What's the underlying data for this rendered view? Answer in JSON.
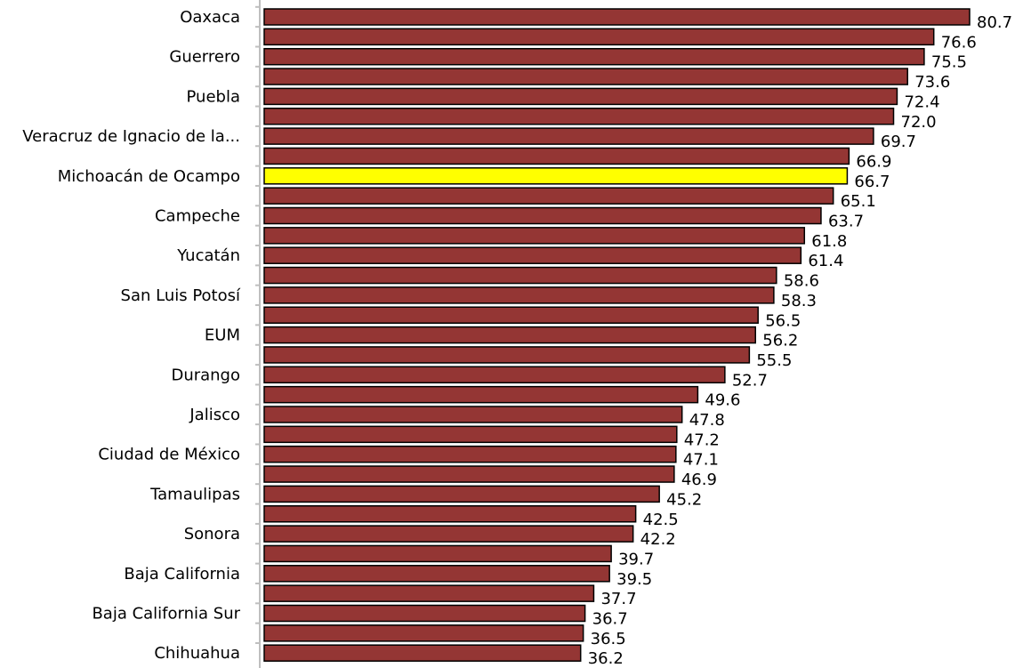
{
  "chart_data": {
    "type": "bar",
    "orientation": "horizontal",
    "categories": [
      "Oaxaca",
      "",
      "Guerrero",
      "",
      "Puebla",
      "",
      "Veracruz de Ignacio de la...",
      "",
      "Michoacán de Ocampo",
      "",
      "Campeche",
      "",
      "Yucatán",
      "",
      "San Luis Potosí",
      "",
      "EUM",
      "",
      "Durango",
      "",
      "Jalisco",
      "",
      "Ciudad de México",
      "",
      "Tamaulipas",
      "",
      "Sonora",
      "",
      "Baja California",
      "",
      "Baja California Sur",
      "",
      "Chihuahua"
    ],
    "values": [
      80.7,
      76.6,
      75.5,
      73.6,
      72.4,
      72.0,
      69.7,
      66.9,
      66.7,
      65.1,
      63.7,
      61.8,
      61.4,
      58.6,
      58.3,
      56.5,
      56.2,
      55.5,
      52.7,
      49.6,
      47.8,
      47.2,
      47.1,
      46.9,
      45.2,
      42.5,
      42.2,
      39.7,
      39.5,
      37.7,
      36.7,
      36.5,
      36.2
    ],
    "value_labels": [
      "80.7",
      "76.6",
      "75.5",
      "73.6",
      "72.4",
      "72.0",
      "69.7",
      "66.9",
      "66.7",
      "65.1",
      "63.7",
      "61.8",
      "61.4",
      "58.6",
      "58.3",
      "56.5",
      "56.2",
      "55.5",
      "52.7",
      "49.6",
      "47.8",
      "47.2",
      "47.1",
      "46.9",
      "45.2",
      "42.5",
      "42.2",
      "39.7",
      "39.5",
      "37.7",
      "36.7",
      "36.5",
      "36.2"
    ],
    "highlighted_category": "Michoacán de Ocampo",
    "xlim": [
      0,
      80.7
    ],
    "colors": {
      "bar": "#943634",
      "highlight": "#ffff00",
      "outline": "#000000",
      "axis": "#bfbfbf"
    },
    "grid": false,
    "legend": "none"
  }
}
